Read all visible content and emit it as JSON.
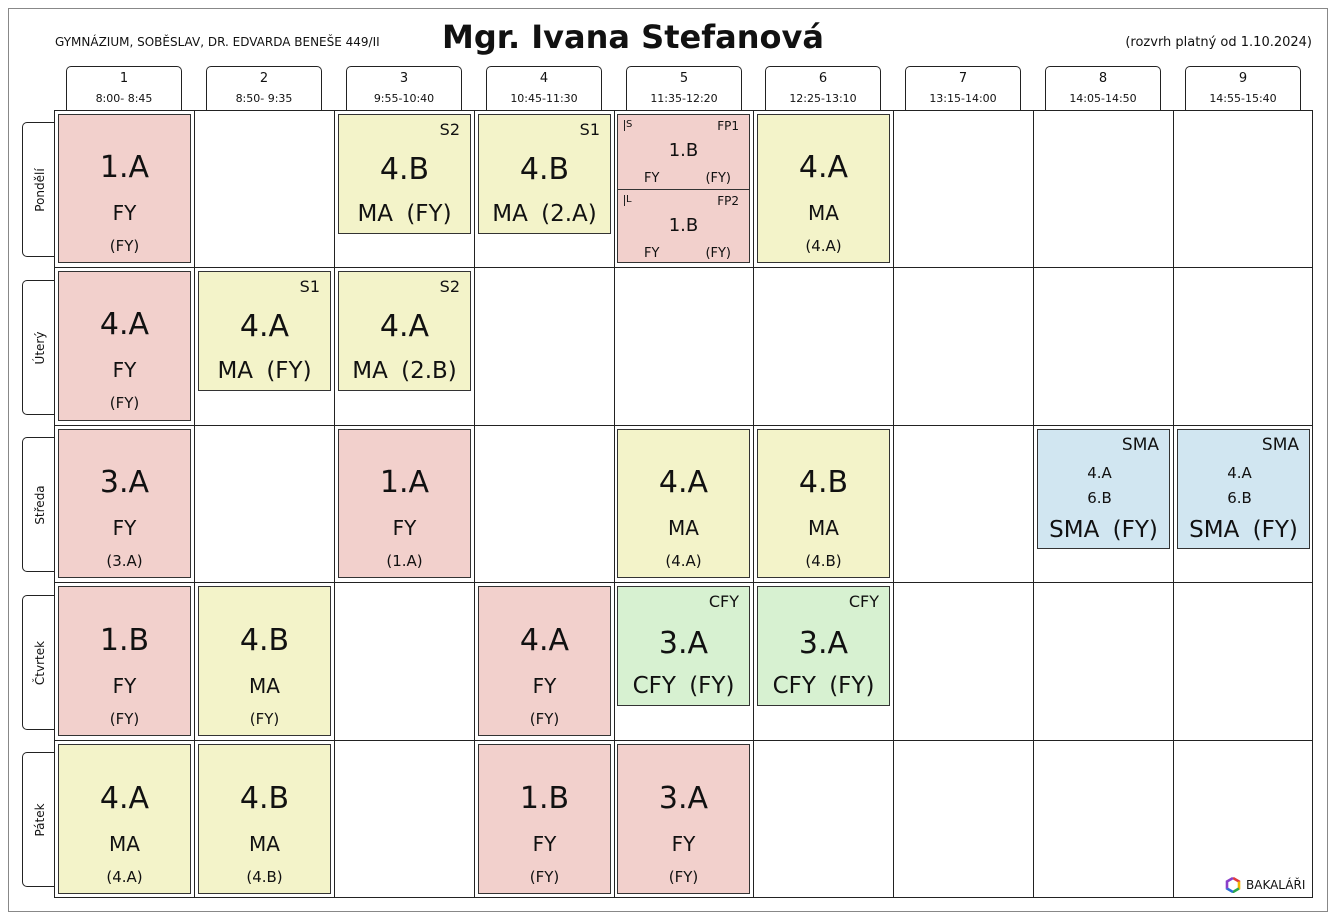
{
  "header": {
    "school": "GYMNÁZIUM, SOBĚSLAV, DR. EDVARDA BENEŠE 449/II",
    "teacher": "Mgr. Ivana Stefanová",
    "validity": "(rozvrh platný od 1.10.2024)"
  },
  "periods": [
    {
      "num": "1",
      "time": "8:00- 8:45"
    },
    {
      "num": "2",
      "time": "8:50- 9:35"
    },
    {
      "num": "3",
      "time": "9:55-10:40"
    },
    {
      "num": "4",
      "time": "10:45-11:30"
    },
    {
      "num": "5",
      "time": "11:35-12:20"
    },
    {
      "num": "6",
      "time": "12:25-13:10"
    },
    {
      "num": "7",
      "time": "13:15-14:00"
    },
    {
      "num": "8",
      "time": "14:05-14:50"
    },
    {
      "num": "9",
      "time": "14:55-15:40"
    }
  ],
  "days": [
    "Pondělí",
    "Úterý",
    "Středa",
    "Čtvrtek",
    "Pátek"
  ],
  "lessons": {
    "po1": {
      "cls": "1.A",
      "subj": "FY",
      "room": "(FY)"
    },
    "po3": {
      "grp": "S2",
      "cls": "4.B",
      "row": "MA   (FY)"
    },
    "po4": {
      "grp": "S1",
      "cls": "4.B",
      "row": "MA   (2.A)"
    },
    "po5a": {
      "mark": "S",
      "grp": "FP1",
      "cls": "1.B",
      "subj": "FY",
      "room": "(FY)"
    },
    "po5b": {
      "mark": "L",
      "grp": "FP2",
      "cls": "1.B",
      "subj": "FY",
      "room": "(FY)"
    },
    "po6": {
      "cls": "4.A",
      "subj": "MA",
      "room": "(4.A)"
    },
    "ut1": {
      "cls": "4.A",
      "subj": "FY",
      "room": "(FY)"
    },
    "ut2": {
      "grp": "S1",
      "cls": "4.A",
      "row": "MA   (FY)"
    },
    "ut3": {
      "grp": "S2",
      "cls": "4.A",
      "row": "MA   (2.B)"
    },
    "st1": {
      "cls": "3.A",
      "subj": "FY",
      "room": "(3.A)"
    },
    "st3": {
      "cls": "1.A",
      "subj": "FY",
      "room": "(1.A)"
    },
    "st5": {
      "cls": "4.A",
      "subj": "MA",
      "room": "(4.A)"
    },
    "st6": {
      "cls": "4.B",
      "subj": "MA",
      "room": "(4.B)"
    },
    "st8": {
      "grp": "SMA",
      "cls1": "4.A",
      "cls2": "6.B",
      "row": "SMA   (FY)"
    },
    "st9": {
      "grp": "SMA",
      "cls1": "4.A",
      "cls2": "6.B",
      "row": "SMA   (FY)"
    },
    "ct1": {
      "cls": "1.B",
      "subj": "FY",
      "room": "(FY)"
    },
    "ct2": {
      "cls": "4.B",
      "subj": "MA",
      "room": "(FY)"
    },
    "ct4": {
      "cls": "4.A",
      "subj": "FY",
      "room": "(FY)"
    },
    "ct5": {
      "grp": "CFY",
      "cls": "3.A",
      "row": "CFY   (FY)"
    },
    "ct6": {
      "grp": "CFY",
      "cls": "3.A",
      "row": "CFY   (FY)"
    },
    "pa1": {
      "cls": "4.A",
      "subj": "MA",
      "room": "(4.A)"
    },
    "pa2": {
      "cls": "4.B",
      "subj": "MA",
      "room": "(4.B)"
    },
    "pa4": {
      "cls": "1.B",
      "subj": "FY",
      "room": "(FY)"
    },
    "pa5": {
      "cls": "3.A",
      "subj": "FY",
      "room": "(FY)"
    }
  },
  "colors": {
    "pink": "#f2d0cc",
    "yellow": "#f3f3c9",
    "green": "#d7f1d1",
    "blue": "#d1e6f1"
  },
  "footer": {
    "brand": "BAKALÁŘI",
    "brand_icon": "bakalari-logo-icon"
  }
}
